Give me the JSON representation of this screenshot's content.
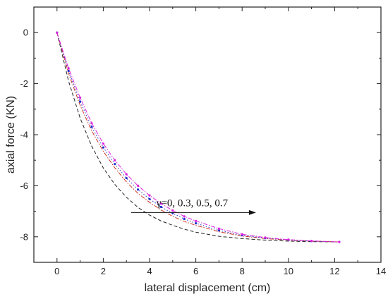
{
  "chart_data": {
    "type": "line",
    "xlabel": "lateral displacement (cm)",
    "ylabel": "axial force (KN)",
    "xlim": [
      -1,
      14
    ],
    "ylim": [
      -9,
      1
    ],
    "xticks": [
      0,
      2,
      4,
      6,
      8,
      10,
      12,
      14
    ],
    "yticks": [
      0,
      -2,
      -4,
      -6,
      -8
    ],
    "grid": false,
    "annotation": {
      "text": "γ=0, 0.3, 0.5, 0.7",
      "arrow_from": [
        3.2,
        -7.05
      ],
      "arrow_to": [
        8.6,
        -7.05
      ]
    },
    "series": [
      {
        "color": "#222222",
        "style": "dashed",
        "x": [
          0,
          0.5,
          1,
          1.5,
          2,
          2.5,
          3,
          3.5,
          4,
          4.5,
          5,
          5.5,
          6,
          7,
          8,
          9,
          10,
          11,
          12.2
        ],
        "y": [
          0,
          -1.9,
          -3.35,
          -4.45,
          -5.3,
          -5.95,
          -6.45,
          -6.85,
          -7.15,
          -7.38,
          -7.55,
          -7.7,
          -7.82,
          -7.98,
          -8.07,
          -8.13,
          -8.17,
          -8.19,
          -8.2
        ]
      },
      {
        "color": "#cc3322",
        "style": "dashdot",
        "x": [
          0,
          0.5,
          1,
          1.5,
          2,
          2.5,
          3,
          3.5,
          4,
          4.5,
          5,
          5.5,
          6,
          7,
          8,
          9,
          10,
          11,
          12.2
        ],
        "y": [
          0,
          -1.6,
          -2.85,
          -3.85,
          -4.65,
          -5.3,
          -5.85,
          -6.3,
          -6.65,
          -6.95,
          -7.2,
          -7.4,
          -7.55,
          -7.8,
          -7.97,
          -8.07,
          -8.13,
          -8.17,
          -8.2
        ]
      },
      {
        "color": "#2233cc",
        "style": "dotted",
        "markers": true,
        "x": [
          0,
          0.5,
          1,
          1.5,
          2,
          2.5,
          3,
          3.5,
          4,
          4.5,
          5,
          5.5,
          6,
          7,
          8,
          9,
          10,
          11,
          12.2
        ],
        "y": [
          0,
          -1.5,
          -2.7,
          -3.7,
          -4.5,
          -5.15,
          -5.7,
          -6.15,
          -6.52,
          -6.83,
          -7.08,
          -7.3,
          -7.47,
          -7.75,
          -7.94,
          -8.05,
          -8.12,
          -8.17,
          -8.2
        ]
      },
      {
        "color": "#dd22dd",
        "style": "dashdot",
        "markers": true,
        "x": [
          0,
          0.5,
          1,
          1.5,
          2,
          2.5,
          3,
          3.5,
          4,
          4.5,
          5,
          5.5,
          6,
          7,
          8,
          9,
          10,
          11,
          12.2
        ],
        "y": [
          0,
          -1.4,
          -2.55,
          -3.55,
          -4.35,
          -5.0,
          -5.55,
          -6.0,
          -6.38,
          -6.7,
          -6.97,
          -7.2,
          -7.38,
          -7.68,
          -7.9,
          -8.03,
          -8.11,
          -8.16,
          -8.2
        ]
      }
    ]
  }
}
